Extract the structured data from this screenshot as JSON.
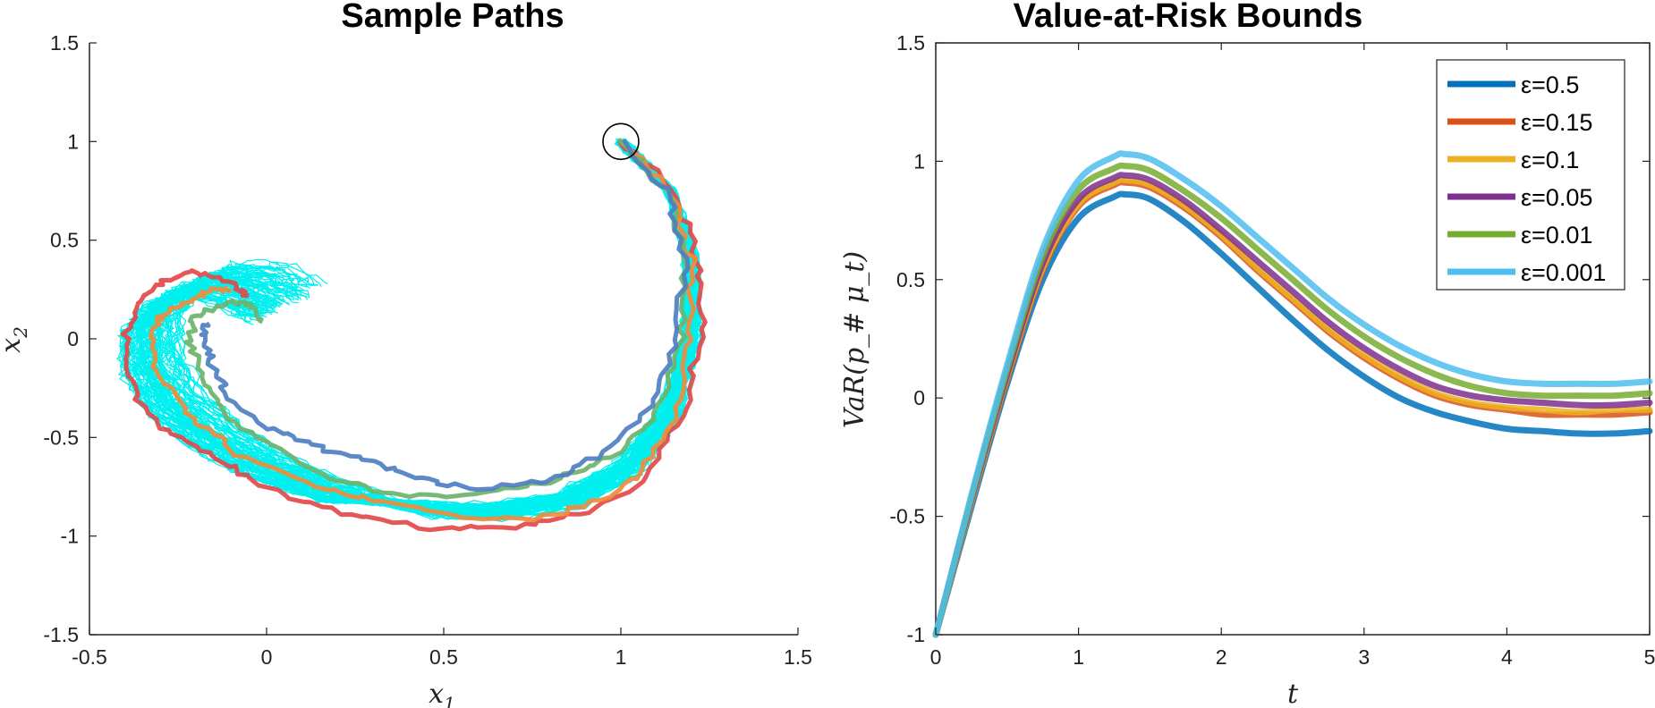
{
  "chart_data": [
    {
      "type": "line",
      "title": "Sample Paths",
      "xlabel": "x",
      "xlabel_sub": "1",
      "ylabel": "x",
      "ylabel_sub": "2",
      "xlim": [
        -0.5,
        1.5
      ],
      "ylim": [
        -1.5,
        1.5
      ],
      "xticks": [
        "-0.5",
        "0",
        "0.5",
        "1",
        "1.5"
      ],
      "yticks": [
        "-1.5",
        "-1",
        "-0.5",
        "0",
        "0.5",
        "1",
        "1.5"
      ],
      "grid": false,
      "start_marker": {
        "x": 1.0,
        "y": 1.0,
        "shape": "circle"
      },
      "background_paths": {
        "name": "",
        "color": "#00f0f0"
      },
      "series": [
        {
          "color": "#e24a4a",
          "x": [
            1.0,
            1.15,
            1.22,
            1.23,
            1.18,
            1.08,
            0.9,
            0.7,
            0.45,
            0.2,
            0.0,
            -0.15,
            -0.3,
            -0.38,
            -0.4,
            -0.36,
            -0.28,
            -0.2,
            -0.1,
            -0.05
          ],
          "y": [
            1.0,
            0.75,
            0.4,
            0.05,
            -0.35,
            -0.7,
            -0.88,
            -0.95,
            -0.96,
            -0.88,
            -0.75,
            -0.6,
            -0.45,
            -0.25,
            0.0,
            0.2,
            0.3,
            0.34,
            0.28,
            0.22
          ]
        },
        {
          "color": "#f08c3c",
          "x": [
            1.0,
            1.14,
            1.2,
            1.2,
            1.15,
            1.05,
            0.9,
            0.75,
            0.55,
            0.3,
            0.1,
            -0.08,
            -0.2,
            -0.3,
            -0.33,
            -0.3,
            -0.22,
            -0.15,
            -0.1
          ],
          "y": [
            1.0,
            0.75,
            0.4,
            0.0,
            -0.4,
            -0.7,
            -0.85,
            -0.92,
            -0.9,
            -0.82,
            -0.72,
            -0.58,
            -0.42,
            -0.22,
            0.0,
            0.12,
            0.2,
            0.25,
            0.24
          ]
        },
        {
          "color": "#6cb36c",
          "x": [
            1.0,
            1.13,
            1.18,
            1.17,
            1.1,
            0.98,
            0.8,
            0.6,
            0.4,
            0.2,
            0.05,
            -0.1,
            -0.18,
            -0.22,
            -0.2,
            -0.12,
            -0.05,
            -0.02
          ],
          "y": [
            1.0,
            0.75,
            0.42,
            0.0,
            -0.38,
            -0.6,
            -0.72,
            -0.78,
            -0.8,
            -0.72,
            -0.58,
            -0.4,
            -0.2,
            0.0,
            0.12,
            0.18,
            0.18,
            0.08
          ]
        },
        {
          "color": "#4f7fc1",
          "x": [
            1.0,
            1.13,
            1.18,
            1.16,
            1.08,
            0.95,
            0.8,
            0.62,
            0.45,
            0.3,
            0.15,
            0.0,
            -0.1,
            -0.15,
            -0.18,
            -0.17
          ],
          "y": [
            1.0,
            0.75,
            0.42,
            0.0,
            -0.35,
            -0.58,
            -0.72,
            -0.76,
            -0.72,
            -0.63,
            -0.55,
            -0.45,
            -0.32,
            -0.15,
            0.0,
            0.08
          ]
        }
      ]
    },
    {
      "type": "line",
      "title": "Value-at-Risk Bounds",
      "xlabel": "t",
      "ylabel": "VaR(p_# μ_t)",
      "xlim": [
        0,
        5
      ],
      "ylim": [
        -1,
        1.5
      ],
      "xticks": [
        "0",
        "1",
        "2",
        "3",
        "4",
        "5"
      ],
      "yticks": [
        "-1",
        "-0.5",
        "0",
        "0.5",
        "1",
        "1.5"
      ],
      "grid": false,
      "legend_placement": "top-right",
      "x": [
        0,
        0.25,
        0.5,
        0.75,
        1.0,
        1.25,
        1.33,
        1.5,
        1.75,
        2.0,
        2.25,
        2.5,
        2.75,
        3.0,
        3.25,
        3.5,
        3.75,
        4.0,
        4.25,
        4.5,
        4.75,
        5.0
      ],
      "series": [
        {
          "name": "ε=0.5",
          "color": "#0072bd",
          "values": [
            -1.0,
            -0.46,
            0.06,
            0.5,
            0.76,
            0.85,
            0.86,
            0.84,
            0.74,
            0.61,
            0.47,
            0.33,
            0.2,
            0.09,
            0.0,
            -0.06,
            -0.1,
            -0.13,
            -0.14,
            -0.15,
            -0.15,
            -0.14
          ]
        },
        {
          "name": "ε=0.15",
          "color": "#d95319",
          "values": [
            -1.0,
            -0.44,
            0.08,
            0.54,
            0.81,
            0.9,
            0.91,
            0.89,
            0.8,
            0.68,
            0.54,
            0.41,
            0.28,
            0.17,
            0.08,
            0.01,
            -0.03,
            -0.05,
            -0.07,
            -0.07,
            -0.07,
            -0.06
          ]
        },
        {
          "name": "ε=0.1",
          "color": "#edb120",
          "values": [
            -1.0,
            -0.44,
            0.09,
            0.55,
            0.82,
            0.91,
            0.92,
            0.9,
            0.81,
            0.69,
            0.55,
            0.42,
            0.29,
            0.18,
            0.09,
            0.02,
            -0.02,
            -0.04,
            -0.05,
            -0.06,
            -0.05,
            -0.05
          ]
        },
        {
          "name": "ε=0.05",
          "color": "#7e2f8e",
          "values": [
            -1.0,
            -0.43,
            0.1,
            0.57,
            0.84,
            0.93,
            0.94,
            0.92,
            0.83,
            0.71,
            0.58,
            0.45,
            0.32,
            0.21,
            0.12,
            0.05,
            0.01,
            -0.01,
            -0.02,
            -0.03,
            -0.03,
            -0.02
          ]
        },
        {
          "name": "ε=0.01",
          "color": "#77ac30",
          "values": [
            -1.0,
            -0.42,
            0.12,
            0.6,
            0.88,
            0.97,
            0.98,
            0.96,
            0.87,
            0.76,
            0.63,
            0.5,
            0.37,
            0.26,
            0.17,
            0.1,
            0.05,
            0.02,
            0.01,
            0.01,
            0.01,
            0.02
          ]
        },
        {
          "name": "ε=0.001",
          "color": "#4dbeee",
          "values": [
            -1.0,
            -0.41,
            0.14,
            0.63,
            0.92,
            1.02,
            1.03,
            1.01,
            0.92,
            0.81,
            0.68,
            0.55,
            0.42,
            0.31,
            0.22,
            0.15,
            0.1,
            0.07,
            0.06,
            0.06,
            0.06,
            0.07
          ]
        }
      ]
    }
  ]
}
